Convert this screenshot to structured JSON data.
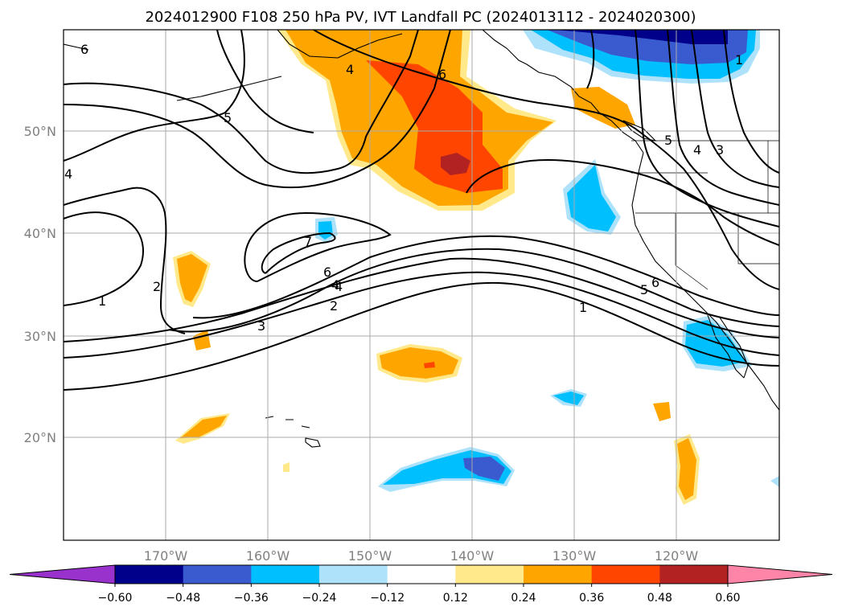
{
  "title": "2024012900 F108 250 hPa PV, IVT Landfall PC (2024013112 - 2024020300)",
  "map": {
    "projection": "PlateCarree",
    "lon_range": [
      -180,
      -110
    ],
    "lat_range": [
      10,
      60
    ],
    "lon_ticks": [
      -170,
      -160,
      -150,
      -140,
      -130,
      -120
    ],
    "lat_ticks": [
      20,
      30,
      40,
      50
    ],
    "lon_tick_labels": [
      "170°W",
      "160°W",
      "150°W",
      "140°W",
      "130°W",
      "120°W"
    ],
    "lat_tick_labels": [
      "20°N",
      "30°N",
      "40°N",
      "50°N"
    ],
    "grid": true
  },
  "contour_labels": [
    "6",
    "4",
    "6",
    "5",
    "4",
    "4",
    "7",
    "6",
    "4",
    "2",
    "2",
    "1",
    "3",
    "1",
    "5",
    "6",
    "5",
    "4",
    "3",
    "1"
  ],
  "colorbar": {
    "ticks": [
      "−0.60",
      "−0.48",
      "−0.36",
      "−0.24",
      "−0.12",
      "0.12",
      "0.24",
      "0.36",
      "0.48",
      "0.60"
    ],
    "colors": [
      "#9932CC",
      "#00008B",
      "#3A5BD0",
      "#00BFFF",
      "#AEE2FA",
      "#FFFFFF",
      "#FFE98A",
      "#FFA500",
      "#FF4500",
      "#B22222",
      "#FF85A8"
    ],
    "extend": "both"
  }
}
